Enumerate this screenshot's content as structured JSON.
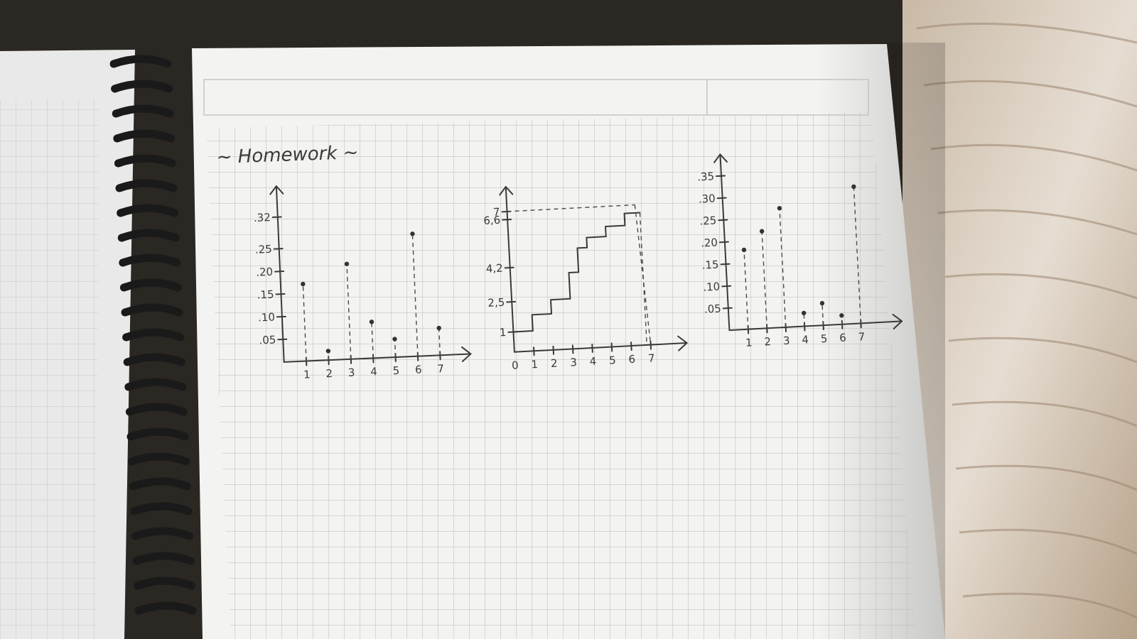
{
  "page": {
    "title": "~ Homework ~"
  },
  "chart_data": [
    {
      "type": "scatter",
      "style": "stem",
      "x": [
        1,
        2,
        3,
        4,
        5,
        6,
        7
      ],
      "x_ticks": [
        "1",
        "2",
        "3",
        "4",
        "5",
        "6",
        "7"
      ],
      "y_ticks": [
        ".05",
        ".10",
        ".15",
        ".20",
        ".25",
        ".32"
      ],
      "y_tick_values": [
        0.05,
        0.1,
        0.15,
        0.2,
        0.25,
        0.32
      ],
      "values": [
        0.17,
        0.02,
        0.21,
        0.08,
        0.04,
        0.27,
        0.06
      ],
      "xlim": [
        0,
        7.8
      ],
      "ylim": [
        0,
        0.36
      ]
    },
    {
      "type": "line",
      "style": "step",
      "x_ticks": [
        "0",
        "1",
        "2",
        "3",
        "4",
        "5",
        "6",
        "7"
      ],
      "x_tick_values": [
        0,
        1,
        2,
        3,
        4,
        5,
        6,
        7
      ],
      "y_ticks": [
        "1",
        "2,5",
        "4,2",
        "6,6",
        "7"
      ],
      "y_tick_values": [
        1,
        2.5,
        4.2,
        6.6,
        7
      ],
      "steps_x": [
        0,
        1,
        2,
        3,
        3.5,
        4,
        5,
        6
      ],
      "steps_y": [
        1,
        1.8,
        2.5,
        3.8,
        5.0,
        5.5,
        6.0,
        6.6
      ],
      "reference_y": 7,
      "reference_x": 7,
      "xlim": [
        0,
        8.2
      ],
      "ylim": [
        0,
        7.6
      ]
    },
    {
      "type": "scatter",
      "style": "stem",
      "x": [
        1,
        2,
        3,
        4,
        5,
        6,
        7
      ],
      "x_ticks": [
        "1",
        "2",
        "3",
        "4",
        "5",
        "6",
        "7"
      ],
      "y_ticks": [
        ".05",
        ".10",
        ".15",
        ".20",
        ".25",
        ".30",
        ".35"
      ],
      "y_tick_values": [
        0.05,
        0.1,
        0.15,
        0.2,
        0.25,
        0.3,
        0.35
      ],
      "values": [
        0.18,
        0.22,
        0.27,
        0.03,
        0.05,
        0.02,
        0.31
      ],
      "xlim": [
        0,
        8.5
      ],
      "ylim": [
        0,
        0.37
      ]
    }
  ]
}
